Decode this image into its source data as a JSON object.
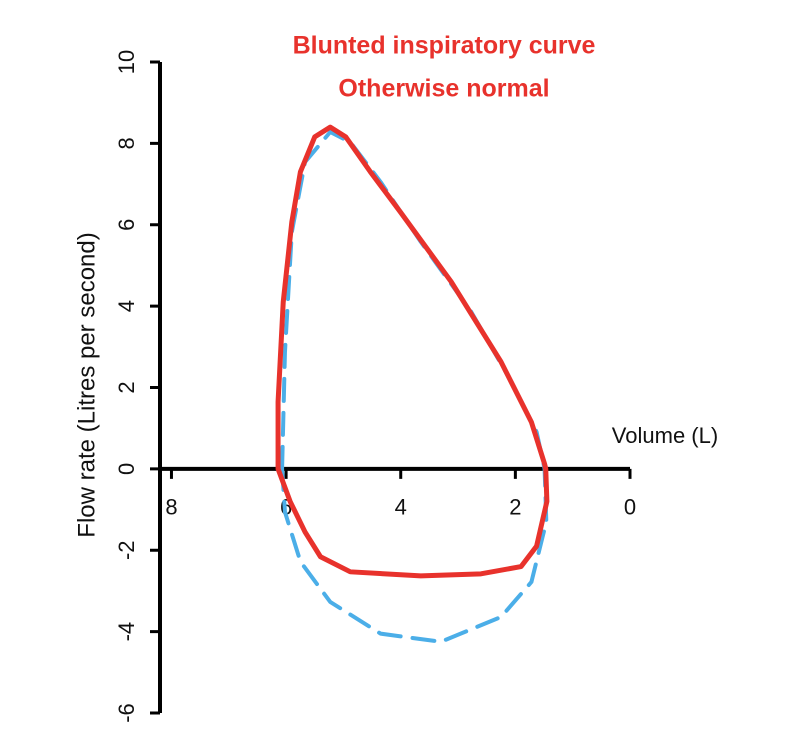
{
  "chart_data": {
    "type": "line",
    "title": [
      "Blunted inspiratory curve",
      "Otherwise normal"
    ],
    "title_color": "#e8322c",
    "x_label": "Volume (L)",
    "y_label": "Flow rate (Litres per second)",
    "xlim": [
      8.2,
      0
    ],
    "xticks": [
      8,
      6,
      4,
      2,
      0
    ],
    "ylim": [
      -6,
      10
    ],
    "yticks": [
      -6,
      -4,
      -2,
      0,
      2,
      4,
      6,
      8,
      10
    ],
    "series": [
      {
        "color": "#4baee8",
        "dashed": true,
        "x": [
          6.07,
          6.02,
          5.9,
          5.67,
          5.23,
          4.88,
          4.35,
          3.65,
          2.77,
          2.07,
          1.63,
          1.49,
          1.46,
          1.72,
          2.25,
          3.3,
          4.35,
          5.23,
          5.75,
          6.02,
          6.07
        ],
        "values": [
          0,
          2.87,
          5.82,
          7.54,
          8.28,
          8.03,
          7.05,
          5.58,
          3.86,
          2.14,
          0.91,
          0,
          -1.3,
          -2.78,
          -3.64,
          -4.25,
          -4.05,
          -3.27,
          -2.28,
          -1.06,
          0
        ]
      },
      {
        "color": "#e8322c",
        "dashed": false,
        "x": [
          6.14,
          6.14,
          6.05,
          5.9,
          5.75,
          5.5,
          5.23,
          4.96,
          4.53,
          4.0,
          3.12,
          2.25,
          1.72,
          1.49,
          1.47,
          1.45,
          1.63,
          1.9,
          2.6,
          3.65,
          4.88,
          5.4,
          5.67,
          5.93,
          6.14
        ],
        "values": [
          0,
          1.65,
          4.1,
          6.07,
          7.3,
          8.16,
          8.4,
          8.16,
          7.3,
          6.3,
          4.6,
          2.63,
          1.15,
          0.12,
          0,
          -0.8,
          -1.9,
          -2.4,
          -2.58,
          -2.63,
          -2.53,
          -2.16,
          -1.55,
          -0.8,
          0
        ]
      }
    ]
  }
}
